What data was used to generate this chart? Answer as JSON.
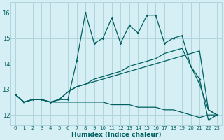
{
  "xlabel": "Humidex (Indice chaleur)",
  "background_color": "#d5eff5",
  "grid_color": "#b0d5dc",
  "line_color": "#006060",
  "xlim": [
    -0.5,
    23.5
  ],
  "ylim": [
    11.6,
    16.4
  ],
  "yticks": [
    12,
    13,
    14,
    15,
    16
  ],
  "xticks": [
    0,
    1,
    2,
    3,
    4,
    5,
    6,
    7,
    8,
    9,
    10,
    11,
    12,
    13,
    14,
    15,
    16,
    17,
    18,
    19,
    20,
    21,
    22,
    23
  ],
  "line1_x": [
    0,
    1,
    2,
    3,
    4,
    5,
    6,
    7,
    8,
    9,
    10,
    11,
    12,
    13,
    14,
    15,
    16,
    17,
    18,
    19,
    20,
    21,
    22,
    23
  ],
  "line1_y": [
    12.8,
    12.5,
    12.6,
    12.6,
    12.5,
    12.6,
    12.6,
    14.1,
    16.0,
    14.8,
    15.0,
    15.8,
    14.8,
    15.5,
    15.2,
    15.9,
    15.9,
    14.8,
    15.0,
    15.1,
    13.9,
    13.4,
    11.8,
    12.0
  ],
  "line2_x": [
    0,
    1,
    2,
    3,
    4,
    5,
    6,
    7,
    8,
    9,
    10,
    11,
    12,
    13,
    14,
    15,
    16,
    17,
    18,
    19,
    20,
    21,
    22,
    23
  ],
  "line2_y": [
    12.8,
    12.5,
    12.6,
    12.6,
    12.5,
    12.5,
    12.5,
    12.5,
    12.5,
    12.5,
    12.5,
    12.4,
    12.4,
    12.4,
    12.3,
    12.3,
    12.3,
    12.2,
    12.2,
    12.1,
    12.0,
    11.9,
    12.0,
    12.0
  ],
  "line3_x": [
    0,
    1,
    2,
    3,
    4,
    5,
    6,
    7,
    8,
    9,
    10,
    11,
    12,
    13,
    14,
    15,
    16,
    17,
    18,
    19,
    20,
    21,
    22,
    23
  ],
  "line3_y": [
    12.8,
    12.5,
    12.6,
    12.6,
    12.5,
    12.6,
    12.9,
    13.1,
    13.2,
    13.3,
    13.4,
    13.5,
    13.6,
    13.7,
    13.8,
    13.9,
    14.0,
    14.1,
    14.2,
    14.3,
    14.4,
    14.5,
    12.2,
    12.0
  ],
  "line4_x": [
    0,
    1,
    2,
    3,
    4,
    5,
    6,
    7,
    8,
    9,
    10,
    11,
    12,
    13,
    14,
    15,
    16,
    17,
    18,
    19,
    20,
    21,
    22,
    23
  ],
  "line4_y": [
    12.8,
    12.5,
    12.6,
    12.6,
    12.5,
    12.6,
    12.9,
    13.1,
    13.2,
    13.4,
    13.5,
    13.6,
    13.7,
    13.9,
    14.0,
    14.1,
    14.2,
    14.4,
    14.5,
    14.6,
    13.9,
    13.2,
    12.2,
    12.0
  ]
}
